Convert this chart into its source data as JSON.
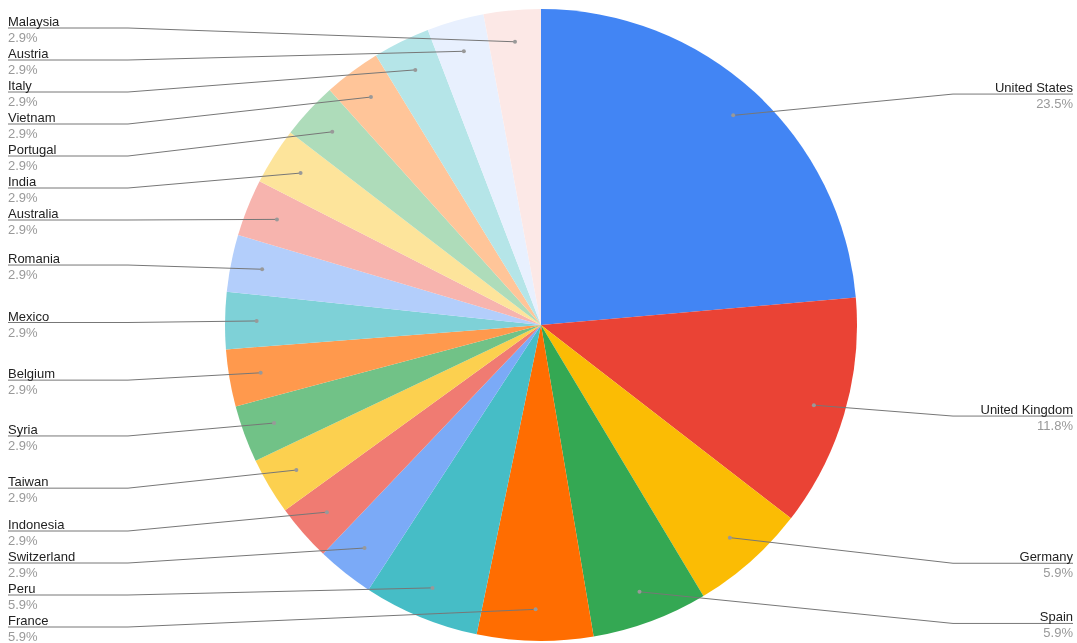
{
  "chart_data": {
    "type": "pie",
    "categories": [
      "United States",
      "United Kingdom",
      "Germany",
      "Spain",
      "France",
      "Peru",
      "Switzerland",
      "Indonesia",
      "Taiwan",
      "Syria",
      "Belgium",
      "Mexico",
      "Romania",
      "Australia",
      "India",
      "Portugal",
      "Vietnam",
      "Italy",
      "Austria",
      "Malaysia"
    ],
    "values": [
      23.5,
      11.8,
      5.9,
      5.9,
      5.9,
      5.9,
      2.9,
      2.9,
      2.9,
      2.9,
      2.9,
      2.9,
      2.9,
      2.9,
      2.9,
      2.9,
      2.9,
      2.9,
      2.9,
      2.9
    ],
    "value_labels": [
      "23.5%",
      "11.8%",
      "5.9%",
      "5.9%",
      "5.9%",
      "5.9%",
      "2.9%",
      "2.9%",
      "2.9%",
      "2.9%",
      "2.9%",
      "2.9%",
      "2.9%",
      "2.9%",
      "2.9%",
      "2.9%",
      "2.9%",
      "2.9%",
      "2.9%",
      "2.9%"
    ],
    "colors": [
      "#4285f4",
      "#ea4335",
      "#fbbc04",
      "#34a853",
      "#ff6d01",
      "#46bdc6",
      "#7baaf7",
      "#f07b72",
      "#fcd04f",
      "#71c287",
      "#ff994d",
      "#7ed1d7",
      "#b3cefb",
      "#f7b4ae",
      "#fde49b",
      "#aedcba",
      "#ffc599",
      "#b5e5e8",
      "#e8f0fe",
      "#fce8e6"
    ]
  }
}
